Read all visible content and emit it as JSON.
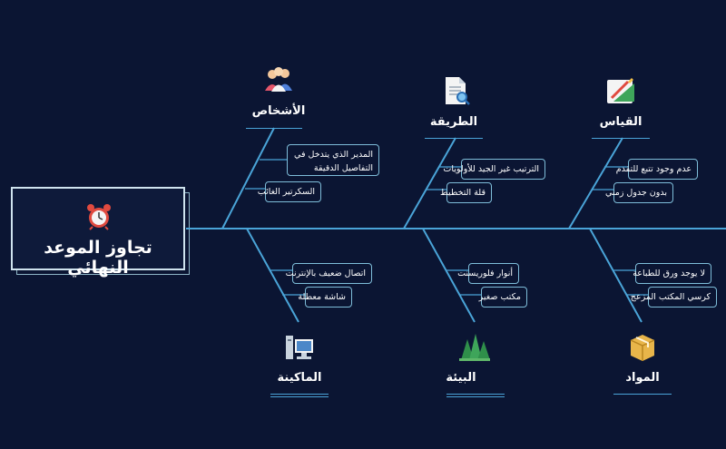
{
  "head": {
    "title": "تجاوز الموعد النهائي",
    "icon": "alarm-clock-icon"
  },
  "categories": {
    "people": {
      "title": "الأشخاص",
      "icon": "people-icon",
      "causes": [
        "المدير الذي يتدخل في التفاصيل الدقيقة",
        "السكرتير الغائب"
      ]
    },
    "method": {
      "title": "الطريقة",
      "icon": "document-search-icon",
      "causes": [
        "الترتيب غير الجيد للأولويات",
        "قلة التخطيط"
      ]
    },
    "measurement": {
      "title": "القياس",
      "icon": "ruler-pencil-icon",
      "causes": [
        "عدم وجود تتبع للتقدم",
        "بدون جدول زمني"
      ]
    },
    "machine": {
      "title": "الماكينة",
      "icon": "computer-icon",
      "causes": [
        "اتصال ضعيف بالإنترنت",
        "شاشة معطلة"
      ]
    },
    "environment": {
      "title": "البيئة",
      "icon": "trees-icon",
      "causes": [
        "أنوار فلوريسنت",
        "مكتب صغير"
      ]
    },
    "materials": {
      "title": "المواد",
      "icon": "box-icon",
      "causes": [
        "لا يوجد ورق للطباعة",
        "كرسي المكتب المزعج"
      ]
    }
  },
  "colors": {
    "background": "#0b1533",
    "line": "#4aa4d8",
    "border": "#7ebdd9",
    "text": "#ffffff"
  }
}
